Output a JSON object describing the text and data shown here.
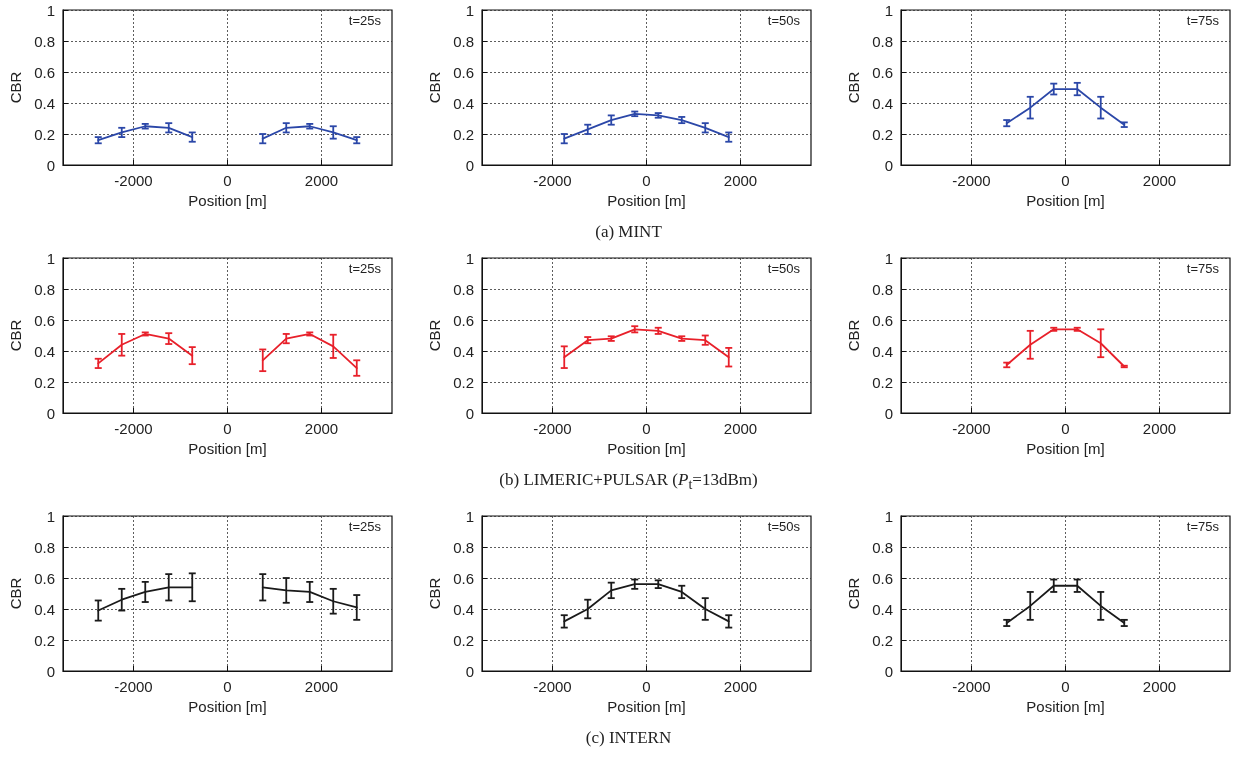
{
  "chart_data": [
    {
      "type": "line",
      "xlabel": "Position [m]",
      "ylabel": "CBR",
      "xlim": [
        -3500,
        3500
      ],
      "xticks": [
        -2000,
        0,
        2000
      ],
      "ylim": [
        0,
        1
      ],
      "yticks": [
        0,
        0.2,
        0.4,
        0.6,
        0.8,
        1
      ],
      "grid": true,
      "marker": "none",
      "line_style": "solid",
      "annotations": [
        "t=25s"
      ],
      "series": [
        {
          "color": "#2b47a8",
          "x": [
            -2750,
            -2250,
            -1750,
            -1250,
            -750,
            0,
            750,
            1250,
            1750,
            2250,
            2750
          ],
          "values": [
            0.16,
            0.21,
            0.25,
            0.24,
            0.18,
            null,
            0.17,
            0.24,
            0.25,
            0.21,
            0.16
          ],
          "errors": [
            0.02,
            0.03,
            0.015,
            0.03,
            0.03,
            null,
            0.03,
            0.03,
            0.015,
            0.04,
            0.02
          ]
        }
      ]
    },
    {
      "type": "line",
      "xlabel": "Position [m]",
      "ylabel": "CBR",
      "xlim": [
        -3500,
        3500
      ],
      "xticks": [
        -2000,
        0,
        2000
      ],
      "ylim": [
        0,
        1
      ],
      "yticks": [
        0,
        0.2,
        0.4,
        0.6,
        0.8,
        1
      ],
      "grid": true,
      "marker": "none",
      "line_style": "solid",
      "annotations": [
        "t=50s",
        "(a) MINT"
      ],
      "series": [
        {
          "color": "#2b47a8",
          "x": [
            -1750,
            -1250,
            -750,
            -250,
            250,
            750,
            1250,
            1750
          ],
          "values": [
            0.17,
            0.23,
            0.29,
            0.33,
            0.32,
            0.29,
            0.24,
            0.18
          ],
          "errors": [
            0.03,
            0.03,
            0.03,
            0.015,
            0.015,
            0.02,
            0.03,
            0.03
          ]
        }
      ]
    },
    {
      "type": "line",
      "xlabel": "Position [m]",
      "ylabel": "CBR",
      "xlim": [
        -3500,
        3500
      ],
      "xticks": [
        -2000,
        0,
        2000
      ],
      "ylim": [
        0,
        1
      ],
      "yticks": [
        0,
        0.2,
        0.4,
        0.6,
        0.8,
        1
      ],
      "grid": true,
      "marker": "none",
      "line_style": "solid",
      "annotations": [
        "t=75s"
      ],
      "series": [
        {
          "color": "#2b47a8",
          "x": [
            -1250,
            -750,
            -250,
            250,
            750,
            1250
          ],
          "values": [
            0.27,
            0.37,
            0.49,
            0.49,
            0.37,
            0.26
          ],
          "errors": [
            0.02,
            0.07,
            0.035,
            0.04,
            0.07,
            0.015
          ]
        }
      ]
    },
    {
      "type": "line",
      "xlabel": "Position [m]",
      "ylabel": "CBR",
      "xlim": [
        -3500,
        3500
      ],
      "xticks": [
        -2000,
        0,
        2000
      ],
      "ylim": [
        0,
        1
      ],
      "yticks": [
        0,
        0.2,
        0.4,
        0.6,
        0.8,
        1
      ],
      "grid": true,
      "marker": "none",
      "line_style": "solid",
      "annotations": [
        "t=25s"
      ],
      "series": [
        {
          "color": "#e8202a",
          "x": [
            -2750,
            -2250,
            -1750,
            -1250,
            -750,
            0,
            750,
            1250,
            1750,
            2250,
            2750
          ],
          "values": [
            0.32,
            0.44,
            0.51,
            0.48,
            0.37,
            null,
            0.34,
            0.48,
            0.51,
            0.43,
            0.29
          ],
          "errors": [
            0.03,
            0.07,
            0.01,
            0.035,
            0.055,
            null,
            0.07,
            0.03,
            0.01,
            0.075,
            0.05
          ]
        }
      ]
    },
    {
      "type": "line",
      "xlabel": "Position [m]",
      "ylabel": "CBR",
      "xlim": [
        -3500,
        3500
      ],
      "xticks": [
        -2000,
        0,
        2000
      ],
      "ylim": [
        0,
        1
      ],
      "yticks": [
        0,
        0.2,
        0.4,
        0.6,
        0.8,
        1
      ],
      "grid": true,
      "marker": "none",
      "line_style": "solid",
      "annotations": [
        "t=50s",
        "(b) LIMERIC+PULSAR (P$_{t}$=13dBm)"
      ],
      "series": [
        {
          "color": "#e8202a",
          "x": [
            -1750,
            -1250,
            -750,
            -250,
            250,
            750,
            1250,
            1750
          ],
          "values": [
            0.36,
            0.47,
            0.48,
            0.54,
            0.53,
            0.48,
            0.47,
            0.36
          ],
          "errors": [
            0.07,
            0.02,
            0.015,
            0.02,
            0.02,
            0.015,
            0.03,
            0.06
          ]
        }
      ]
    },
    {
      "type": "line",
      "xlabel": "Position [m]",
      "ylabel": "CBR",
      "xlim": [
        -3500,
        3500
      ],
      "xticks": [
        -2000,
        0,
        2000
      ],
      "ylim": [
        0,
        1
      ],
      "yticks": [
        0,
        0.2,
        0.4,
        0.6,
        0.8,
        1
      ],
      "grid": true,
      "marker": "none",
      "line_style": "solid",
      "annotations": [
        "t=75s"
      ],
      "series": [
        {
          "color": "#e8202a",
          "x": [
            -1250,
            -750,
            -250,
            250,
            750,
            1250
          ],
          "values": [
            0.31,
            0.44,
            0.54,
            0.54,
            0.45,
            0.3
          ],
          "errors": [
            0.015,
            0.09,
            0.01,
            0.01,
            0.09,
            0.005
          ]
        }
      ]
    },
    {
      "type": "line",
      "xlabel": "Position [m]",
      "ylabel": "CBR",
      "xlim": [
        -3500,
        3500
      ],
      "xticks": [
        -2000,
        0,
        2000
      ],
      "ylim": [
        0,
        1
      ],
      "yticks": [
        0,
        0.2,
        0.4,
        0.6,
        0.8,
        1
      ],
      "grid": true,
      "marker": "none",
      "line_style": "solid",
      "annotations": [
        "t=25s"
      ],
      "series": [
        {
          "color": "#1a1a1a",
          "x": [
            -2750,
            -2250,
            -1750,
            -1250,
            -750,
            0,
            750,
            1250,
            1750,
            2250,
            2750
          ],
          "values": [
            0.39,
            0.46,
            0.51,
            0.54,
            0.54,
            null,
            0.54,
            0.52,
            0.51,
            0.45,
            0.41
          ],
          "errors": [
            0.065,
            0.07,
            0.065,
            0.085,
            0.09,
            null,
            0.085,
            0.08,
            0.065,
            0.08,
            0.08
          ]
        }
      ]
    },
    {
      "type": "line",
      "xlabel": "Position [m]",
      "ylabel": "CBR",
      "xlim": [
        -3500,
        3500
      ],
      "xticks": [
        -2000,
        0,
        2000
      ],
      "ylim": [
        0,
        1
      ],
      "yticks": [
        0,
        0.2,
        0.4,
        0.6,
        0.8,
        1
      ],
      "grid": true,
      "marker": "none",
      "line_style": "solid",
      "annotations": [
        "t=50s",
        "(c) INTERN"
      ],
      "series": [
        {
          "color": "#1a1a1a",
          "x": [
            -1750,
            -1250,
            -750,
            -250,
            250,
            750,
            1250,
            1750
          ],
          "values": [
            0.32,
            0.4,
            0.52,
            0.56,
            0.56,
            0.51,
            0.4,
            0.32
          ],
          "errors": [
            0.04,
            0.06,
            0.05,
            0.03,
            0.025,
            0.04,
            0.07,
            0.04
          ]
        }
      ]
    },
    {
      "type": "line",
      "xlabel": "Position [m]",
      "ylabel": "CBR",
      "xlim": [
        -3500,
        3500
      ],
      "xticks": [
        -2000,
        0,
        2000
      ],
      "ylim": [
        0,
        1
      ],
      "yticks": [
        0,
        0.2,
        0.4,
        0.6,
        0.8,
        1
      ],
      "grid": true,
      "marker": "none",
      "line_style": "solid",
      "annotations": [
        "t=75s"
      ],
      "series": [
        {
          "color": "#1a1a1a",
          "x": [
            -1250,
            -750,
            -250,
            250,
            750,
            1250
          ],
          "values": [
            0.31,
            0.42,
            0.55,
            0.55,
            0.42,
            0.31
          ],
          "errors": [
            0.02,
            0.09,
            0.04,
            0.04,
            0.09,
            0.02
          ]
        }
      ]
    }
  ]
}
